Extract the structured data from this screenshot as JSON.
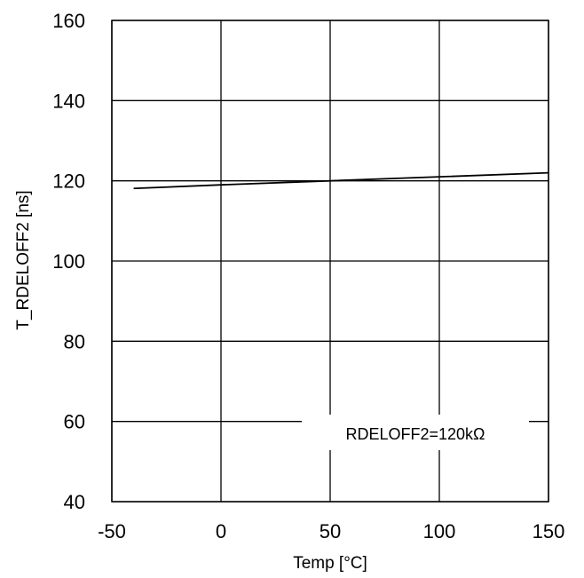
{
  "chart_data": {
    "type": "line",
    "title": "",
    "xlabel": "Temp [°C]",
    "ylabel": "T_RDELOFF2 [ns]",
    "xlim": [
      -50,
      150
    ],
    "ylim": [
      40,
      160
    ],
    "x_ticks": [
      -50,
      0,
      50,
      100,
      150
    ],
    "y_ticks": [
      40,
      60,
      80,
      100,
      120,
      140,
      160
    ],
    "grid": true,
    "legend": "none",
    "series": [
      {
        "x": [
          -40,
          0,
          50,
          100,
          150
        ],
        "y": [
          118.1,
          119,
          120,
          121,
          122
        ]
      }
    ],
    "annotation": "RDELOFF2=120kΩ",
    "colors": {
      "line": "#000000",
      "grid": "#000000",
      "background": "#ffffff"
    }
  }
}
